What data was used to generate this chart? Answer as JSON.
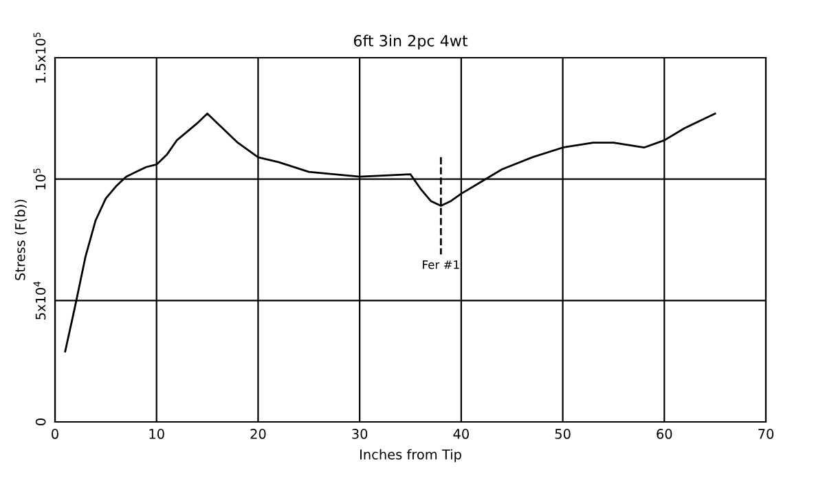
{
  "chart_data": {
    "type": "line",
    "title": "6ft 3in 2pc 4wt",
    "xlabel": "Inches from Tip",
    "ylabel": "Stress (F(b))",
    "xlim": [
      0,
      70
    ],
    "xticks": [
      0,
      10,
      20,
      30,
      40,
      50,
      60,
      70
    ],
    "ylim": [
      0,
      150000
    ],
    "yticks": [
      0,
      {
        "value": 50000,
        "label": "5x10$^{4}$"
      },
      {
        "value": 100000,
        "label": "10$^{5}$"
      },
      {
        "value": 150000,
        "label": "1.5x10$^{5}$"
      }
    ],
    "grid": true,
    "line_style": "solid",
    "series": [
      {
        "color": "#000000",
        "x": [
          1,
          2,
          3,
          4,
          5,
          6,
          7,
          8,
          9,
          10,
          11,
          12,
          14,
          15,
          16,
          18,
          20,
          22,
          25,
          30,
          35,
          36,
          37,
          38,
          39,
          40,
          42,
          44,
          47,
          50,
          53,
          55,
          58,
          60,
          62,
          65
        ],
        "values": [
          29000,
          48000,
          68000,
          83000,
          92000,
          97000,
          101000,
          103000,
          105000,
          106000,
          110000,
          116000,
          123000,
          127000,
          123000,
          115000,
          109000,
          107000,
          103000,
          101000,
          102000,
          96000,
          91000,
          89000,
          91000,
          94000,
          99000,
          104000,
          109000,
          113000,
          115000,
          115000,
          113000,
          116000,
          121000,
          127000
        ]
      },
      {
        "color": "#000000",
        "x": [
          38,
          38
        ],
        "values": [
          109000,
          69000
        ],
        "line_style": "dashed"
      }
    ],
    "annotations": [
      "Fer #1"
    ]
  }
}
